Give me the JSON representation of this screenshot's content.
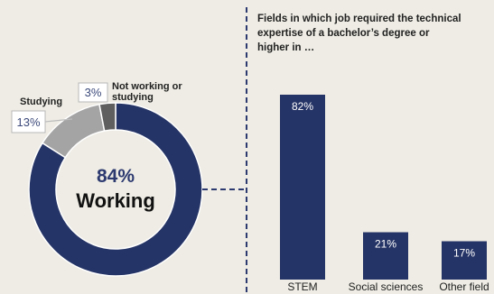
{
  "chart_data": [
    {
      "type": "pie",
      "categories": [
        "Working",
        "Studying",
        "Not working or studying"
      ],
      "values": [
        84,
        13,
        3
      ],
      "value_labels": [
        "84%",
        "13%",
        "3%"
      ],
      "center_value": "84%",
      "center_label": "Working",
      "slice_labels": {
        "studying": "Studying",
        "not_working": [
          "Not working or",
          "studying"
        ]
      },
      "colors": [
        "#253466",
        "#a4a4a4",
        "#5f5f5f"
      ]
    },
    {
      "type": "bar",
      "title_lines": [
        "Fields in which job required the technical",
        "expertise of a bachelor’s degree or",
        "higher in …"
      ],
      "categories": [
        "STEM",
        "Social sciences",
        "Other field"
      ],
      "values": [
        82,
        21,
        17
      ],
      "value_labels": [
        "82%",
        "21%",
        "17%"
      ],
      "ylim": [
        0,
        100
      ],
      "grid": false,
      "color": "#253466"
    }
  ],
  "colors": {
    "background": "#eeece4",
    "connector": "#2d3a70"
  }
}
